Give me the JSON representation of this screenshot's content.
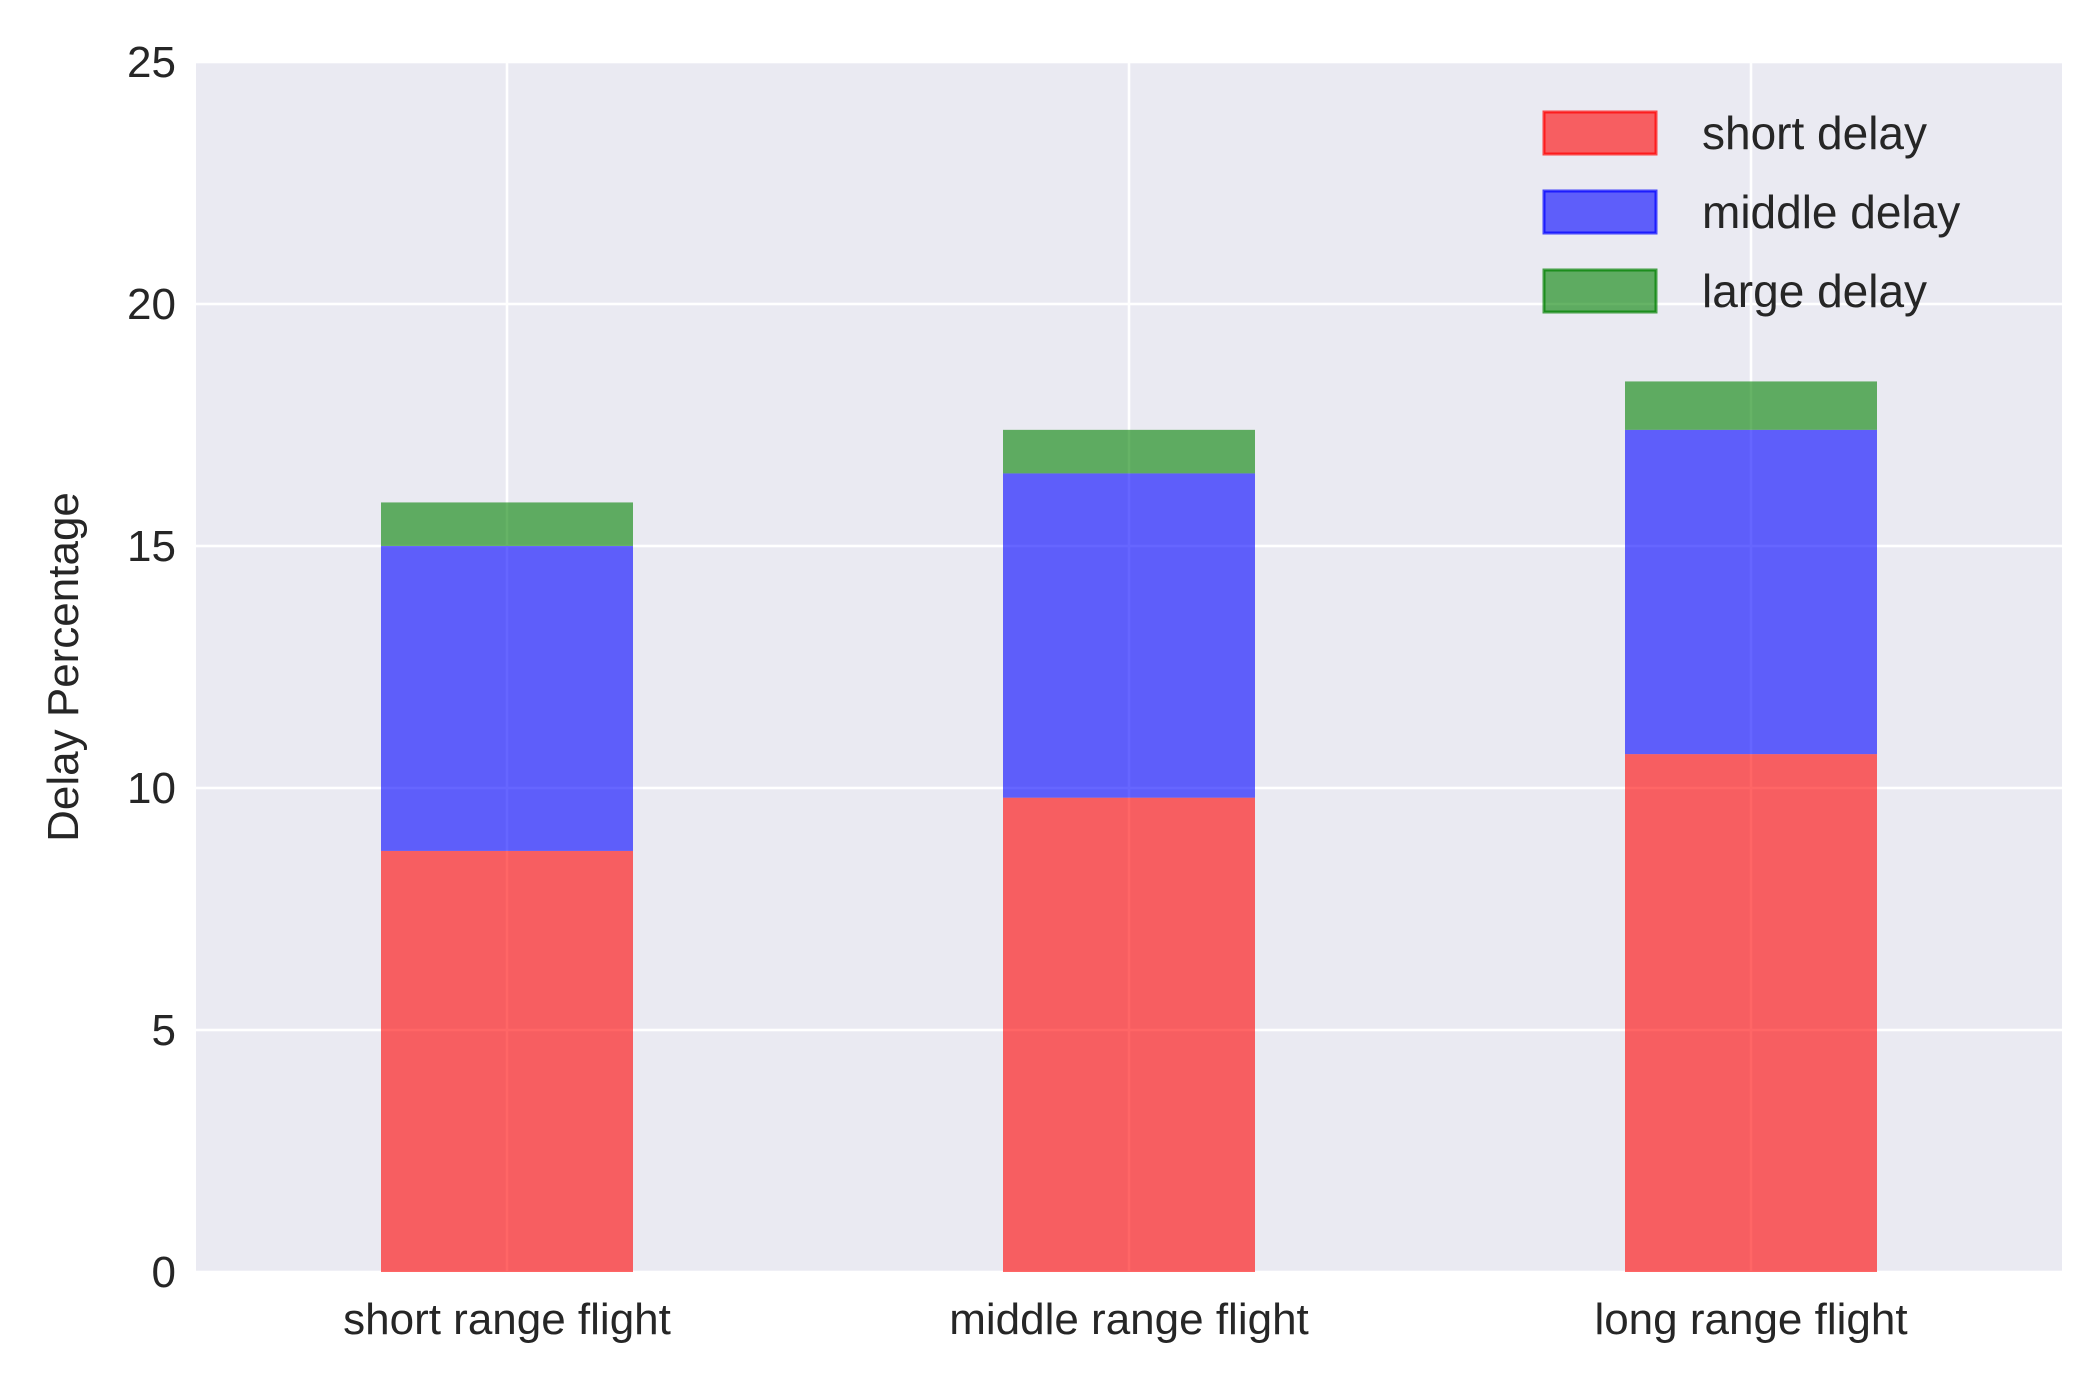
{
  "chart_data": {
    "type": "bar",
    "stacked": true,
    "categories": [
      "short range flight",
      "middle range flight",
      "long range flight"
    ],
    "series": [
      {
        "name": "short delay",
        "values": [
          8.7,
          9.8,
          10.7
        ],
        "color": "#ff0000"
      },
      {
        "name": "middle delay",
        "values": [
          6.3,
          6.7,
          6.7
        ],
        "color": "#0000ff"
      },
      {
        "name": "large delay",
        "values": [
          0.9,
          0.9,
          1.0
        ],
        "color": "#008000"
      }
    ],
    "title": "",
    "xlabel": "",
    "ylabel": "Delay Percentage",
    "ylim": [
      0,
      25
    ],
    "yticks": [
      0,
      5,
      10,
      15,
      20,
      25
    ],
    "grid": true,
    "legend_position": "top-right",
    "background_color": "#eaeaf2",
    "bar_opacity": 0.6
  }
}
